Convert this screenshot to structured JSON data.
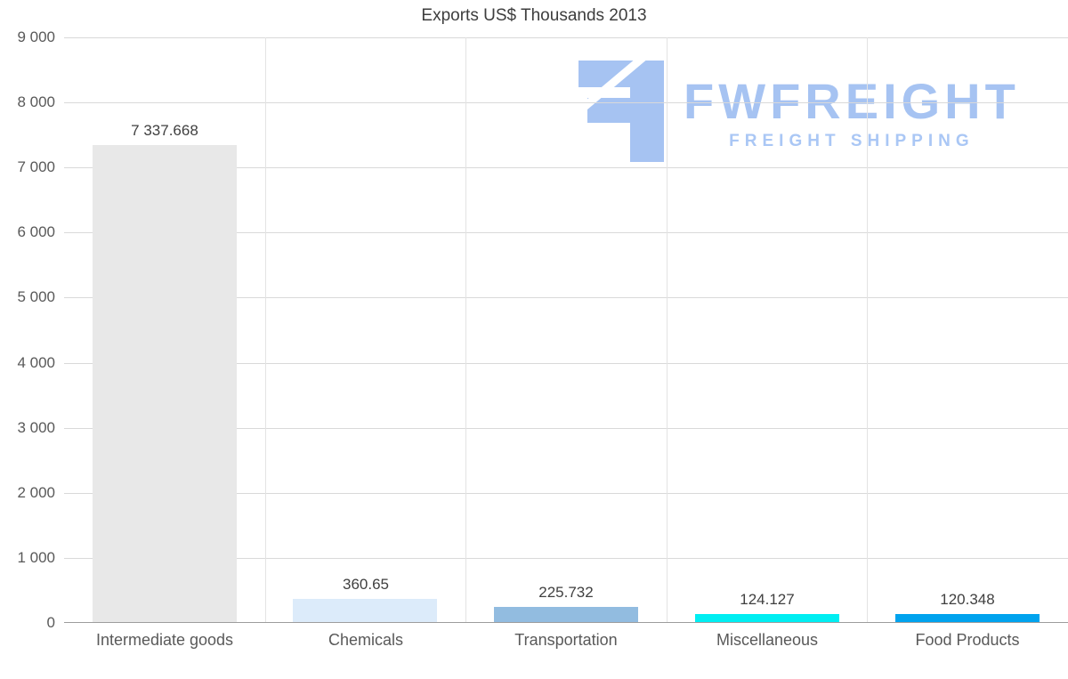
{
  "logo": {
    "text": "FWFREIGHT",
    "subtitle": "FREIGHT SHIPPING",
    "color": "#a6c3f2",
    "subtitle_color": "#aac7f5"
  },
  "chart_data": {
    "type": "bar",
    "title": "Exports US$ Thousands 2013",
    "categories": [
      "Intermediate goods",
      "Chemicals",
      "Transportation",
      "Miscellaneous",
      "Food Products"
    ],
    "values": [
      7337.668,
      360.65,
      225.732,
      124.127,
      120.348
    ],
    "value_labels": [
      "7 337.668",
      "360.65",
      "225.732",
      "124.127",
      "120.348"
    ],
    "bar_colors": [
      "#e8e8e8",
      "#dcebfa",
      "#92bce0",
      "#00eef2",
      "#00a3ee"
    ],
    "xlabel": "",
    "ylabel": "",
    "ylim": [
      0,
      9000
    ],
    "ytick_interval": 1000,
    "ytick_labels": [
      "0",
      "1 000",
      "2 000",
      "3 000",
      "4 000",
      "5 000",
      "6 000",
      "7 000",
      "8 000",
      "9 000"
    ],
    "grid": true,
    "legend": false,
    "axis_color": "#9d9d9d",
    "grid_color": "#d9d9d9",
    "vgrid_color": "#e3e3e3",
    "tick_label_color": "#595959",
    "value_label_color": "#404040",
    "title_color": "#3d3d3d"
  }
}
